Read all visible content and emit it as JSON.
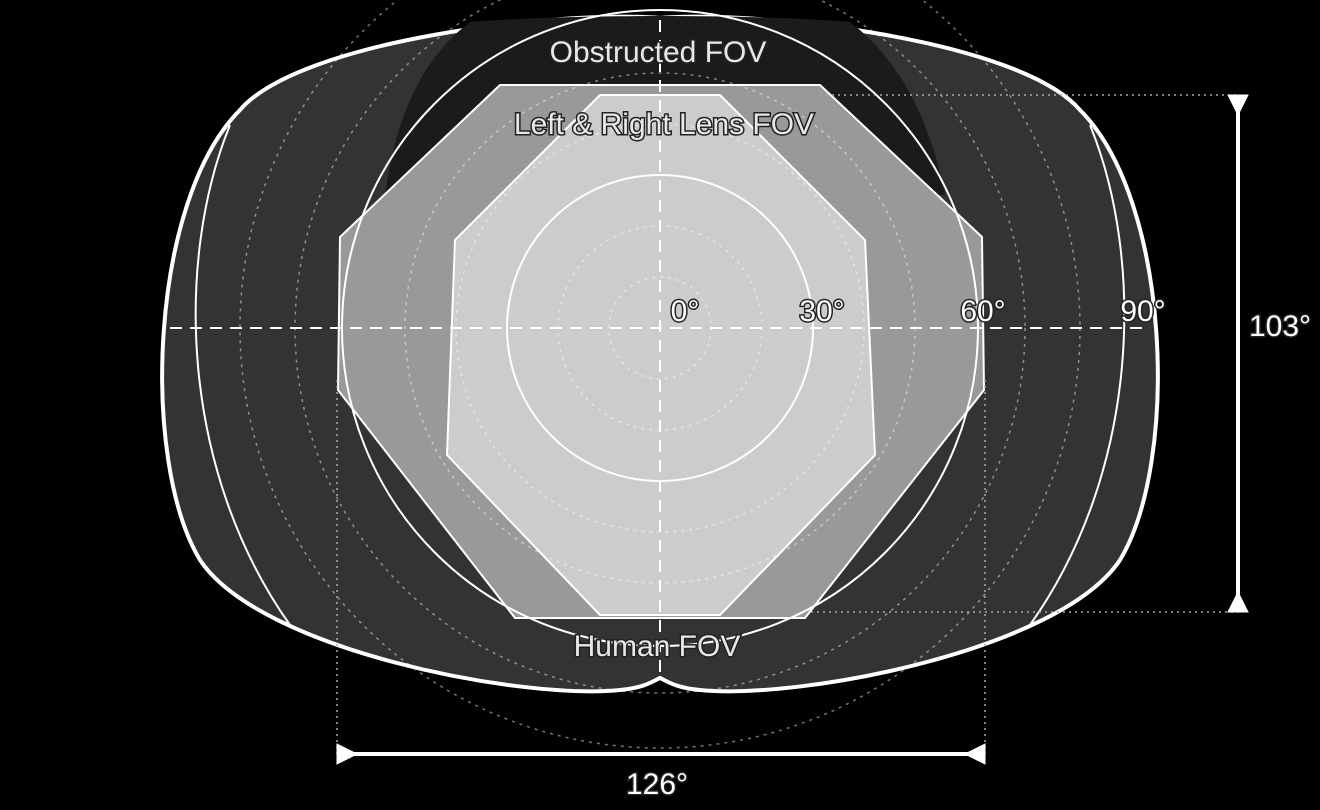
{
  "labels": {
    "obstructed": "Obstructed FOV",
    "lens": "Left & Right Lens FOV",
    "human": "Human FOV"
  },
  "angles": [
    "0°",
    "30°",
    "60°",
    "90°"
  ],
  "dimensions": {
    "vertical": "103°",
    "horizontal": "126°"
  }
}
